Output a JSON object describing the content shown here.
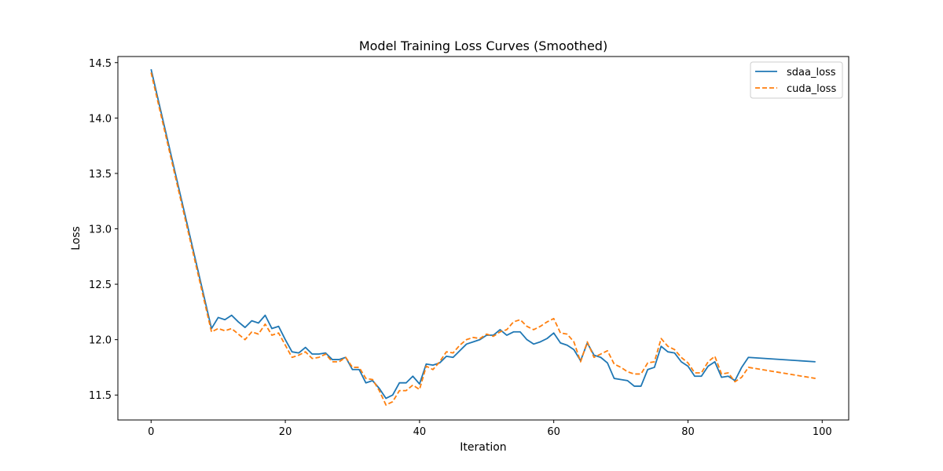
{
  "chart_data": {
    "type": "line",
    "title": "Model Training Loss Curves (Smoothed)",
    "xlabel": "Iteration",
    "ylabel": "Loss",
    "xlim": [
      -4.95,
      103.95
    ],
    "ylim": [
      11.275,
      14.555
    ],
    "xticks": [
      0,
      20,
      40,
      60,
      80,
      100
    ],
    "yticks": [
      11.5,
      12.0,
      12.5,
      13.0,
      13.5,
      14.0,
      14.5
    ],
    "grid": false,
    "legend_position": "top-right",
    "series": [
      {
        "name": "sdaa_loss",
        "color": "#1f77b4",
        "dash": "solid",
        "points": [
          [
            0,
            14.44
          ],
          [
            1,
            14.18
          ],
          [
            2,
            13.92
          ],
          [
            3,
            13.66
          ],
          [
            4,
            13.4
          ],
          [
            5,
            13.14
          ],
          [
            6,
            12.88
          ],
          [
            7,
            12.62
          ],
          [
            8,
            12.36
          ],
          [
            9,
            12.1
          ],
          [
            10,
            12.2
          ],
          [
            11,
            12.18
          ],
          [
            12,
            12.22
          ],
          [
            13,
            12.16
          ],
          [
            14,
            12.11
          ],
          [
            15,
            12.17
          ],
          [
            16,
            12.15
          ],
          [
            17,
            12.22
          ],
          [
            18,
            12.1
          ],
          [
            19,
            12.12
          ],
          [
            20,
            12.0
          ],
          [
            21,
            11.89
          ],
          [
            22,
            11.88
          ],
          [
            23,
            11.93
          ],
          [
            24,
            11.87
          ],
          [
            25,
            11.87
          ],
          [
            26,
            11.88
          ],
          [
            27,
            11.82
          ],
          [
            28,
            11.82
          ],
          [
            29,
            11.84
          ],
          [
            30,
            11.73
          ],
          [
            31,
            11.73
          ],
          [
            32,
            11.61
          ],
          [
            33,
            11.63
          ],
          [
            34,
            11.56
          ],
          [
            35,
            11.47
          ],
          [
            36,
            11.5
          ],
          [
            37,
            11.61
          ],
          [
            38,
            11.61
          ],
          [
            39,
            11.67
          ],
          [
            40,
            11.6
          ],
          [
            41,
            11.78
          ],
          [
            42,
            11.77
          ],
          [
            43,
            11.79
          ],
          [
            44,
            11.85
          ],
          [
            45,
            11.84
          ],
          [
            46,
            11.9
          ],
          [
            47,
            11.96
          ],
          [
            48,
            11.98
          ],
          [
            49,
            12.0
          ],
          [
            50,
            12.04
          ],
          [
            51,
            12.04
          ],
          [
            52,
            12.09
          ],
          [
            53,
            12.04
          ],
          [
            54,
            12.07
          ],
          [
            55,
            12.07
          ],
          [
            56,
            12.0
          ],
          [
            57,
            11.96
          ],
          [
            58,
            11.98
          ],
          [
            59,
            12.01
          ],
          [
            60,
            12.06
          ],
          [
            61,
            11.97
          ],
          [
            62,
            11.95
          ],
          [
            63,
            11.91
          ],
          [
            64,
            11.81
          ],
          [
            65,
            11.97
          ],
          [
            66,
            11.86
          ],
          [
            67,
            11.84
          ],
          [
            68,
            11.79
          ],
          [
            69,
            11.65
          ],
          [
            70,
            11.64
          ],
          [
            71,
            11.63
          ],
          [
            72,
            11.58
          ],
          [
            73,
            11.58
          ],
          [
            74,
            11.73
          ],
          [
            75,
            11.75
          ],
          [
            76,
            11.94
          ],
          [
            77,
            11.89
          ],
          [
            78,
            11.88
          ],
          [
            79,
            11.8
          ],
          [
            80,
            11.76
          ],
          [
            81,
            11.67
          ],
          [
            82,
            11.67
          ],
          [
            83,
            11.76
          ],
          [
            84,
            11.8
          ],
          [
            85,
            11.66
          ],
          [
            86,
            11.67
          ],
          [
            87,
            11.63
          ],
          [
            88,
            11.75
          ],
          [
            89,
            11.84
          ],
          [
            99,
            11.8
          ]
        ]
      },
      {
        "name": "cuda_loss",
        "color": "#ff7f0e",
        "dash": "dashed",
        "points": [
          [
            0,
            14.41
          ],
          [
            1,
            14.15
          ],
          [
            2,
            13.89
          ],
          [
            3,
            13.63
          ],
          [
            4,
            13.37
          ],
          [
            5,
            13.11
          ],
          [
            6,
            12.85
          ],
          [
            7,
            12.59
          ],
          [
            8,
            12.33
          ],
          [
            9,
            12.07
          ],
          [
            10,
            12.1
          ],
          [
            11,
            12.08
          ],
          [
            12,
            12.1
          ],
          [
            13,
            12.05
          ],
          [
            14,
            12.0
          ],
          [
            15,
            12.07
          ],
          [
            16,
            12.05
          ],
          [
            17,
            12.14
          ],
          [
            18,
            12.04
          ],
          [
            19,
            12.06
          ],
          [
            20,
            11.95
          ],
          [
            21,
            11.84
          ],
          [
            22,
            11.86
          ],
          [
            23,
            11.89
          ],
          [
            24,
            11.83
          ],
          [
            25,
            11.84
          ],
          [
            26,
            11.87
          ],
          [
            27,
            11.8
          ],
          [
            28,
            11.8
          ],
          [
            29,
            11.84
          ],
          [
            30,
            11.75
          ],
          [
            31,
            11.75
          ],
          [
            32,
            11.65
          ],
          [
            33,
            11.64
          ],
          [
            34,
            11.54
          ],
          [
            35,
            11.41
          ],
          [
            36,
            11.44
          ],
          [
            37,
            11.54
          ],
          [
            38,
            11.54
          ],
          [
            39,
            11.59
          ],
          [
            40,
            11.55
          ],
          [
            41,
            11.76
          ],
          [
            42,
            11.73
          ],
          [
            43,
            11.8
          ],
          [
            44,
            11.89
          ],
          [
            45,
            11.88
          ],
          [
            46,
            11.95
          ],
          [
            47,
            12.0
          ],
          [
            48,
            12.02
          ],
          [
            49,
            12.01
          ],
          [
            50,
            12.05
          ],
          [
            51,
            12.03
          ],
          [
            52,
            12.07
          ],
          [
            53,
            12.09
          ],
          [
            54,
            12.16
          ],
          [
            55,
            12.18
          ],
          [
            56,
            12.12
          ],
          [
            57,
            12.09
          ],
          [
            58,
            12.12
          ],
          [
            59,
            12.16
          ],
          [
            60,
            12.19
          ],
          [
            61,
            12.06
          ],
          [
            62,
            12.05
          ],
          [
            63,
            11.98
          ],
          [
            64,
            11.8
          ],
          [
            65,
            11.98
          ],
          [
            66,
            11.84
          ],
          [
            67,
            11.87
          ],
          [
            68,
            11.9
          ],
          [
            69,
            11.78
          ],
          [
            70,
            11.75
          ],
          [
            71,
            11.71
          ],
          [
            72,
            11.69
          ],
          [
            73,
            11.69
          ],
          [
            74,
            11.79
          ],
          [
            75,
            11.8
          ],
          [
            76,
            12.01
          ],
          [
            77,
            11.94
          ],
          [
            78,
            11.91
          ],
          [
            79,
            11.84
          ],
          [
            80,
            11.79
          ],
          [
            81,
            11.7
          ],
          [
            82,
            11.7
          ],
          [
            83,
            11.8
          ],
          [
            84,
            11.85
          ],
          [
            85,
            11.69
          ],
          [
            86,
            11.7
          ],
          [
            87,
            11.62
          ],
          [
            88,
            11.66
          ],
          [
            89,
            11.75
          ],
          [
            99,
            11.65
          ]
        ]
      }
    ]
  }
}
